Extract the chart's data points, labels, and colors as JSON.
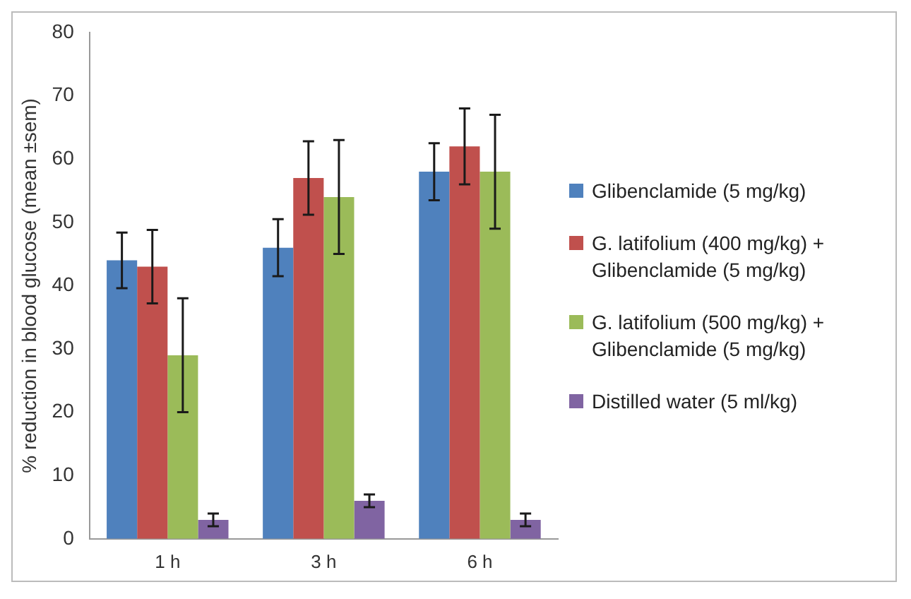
{
  "chart_data": {
    "type": "bar",
    "ylabel": "% reduction in blood glucose (mean ±sem)",
    "categories": [
      "1 h",
      "3 h",
      "6 h"
    ],
    "ylim": [
      0,
      80
    ],
    "yticks": [
      0,
      10,
      20,
      30,
      40,
      50,
      60,
      70,
      80
    ],
    "legend": "right",
    "series": [
      {
        "name": "Glibenclamide (5 mg/kg)",
        "color": "#4f81bd",
        "values": [
          44,
          46,
          58
        ],
        "errors": [
          4.4,
          4.5,
          4.5
        ]
      },
      {
        "name": "G. latifolium (400 mg/kg) + Glibenclamide (5 mg/kg)",
        "color": "#c0504d",
        "values": [
          43,
          57,
          62
        ],
        "errors": [
          5.8,
          5.8,
          6
        ]
      },
      {
        "name": "G. latifolium (500 mg/kg) + Glibenclamide (5 mg/kg)",
        "color": "#9bbb59",
        "values": [
          29,
          54,
          58
        ],
        "errors": [
          9,
          9,
          9
        ]
      },
      {
        "name": "Distilled water (5 ml/kg)",
        "color": "#8064a2",
        "values": [
          3,
          6,
          3
        ],
        "errors": [
          1,
          1,
          1
        ]
      }
    ]
  }
}
